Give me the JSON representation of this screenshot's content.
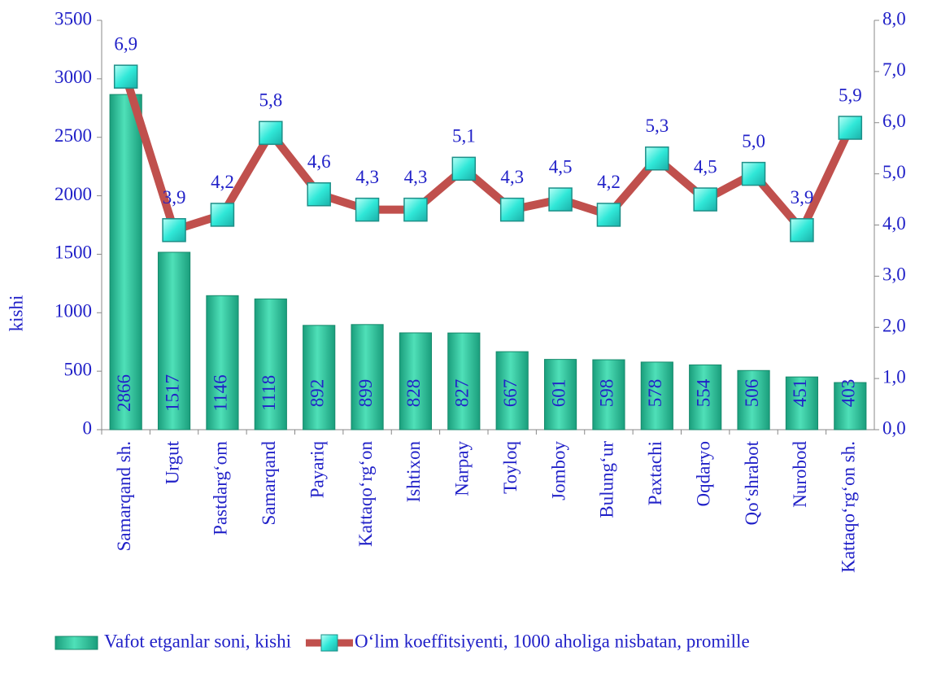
{
  "chart_data": {
    "type": "bar",
    "y_label": "kishi",
    "categories": [
      "Samarqand sh.",
      "Urgut",
      "Pastdarg‘om",
      "Samarqand",
      "Payariq",
      "Kattaqo‘rg‘on",
      "Ishtixon",
      "Narpay",
      "Toyloq",
      "Jomboy",
      "Bulung‘ur",
      "Paxtachi",
      "Oqdaryo",
      "Qo‘shrabot",
      "Nurobod",
      "Kattaqo‘rg‘on sh."
    ],
    "series": [
      {
        "name": "Vafot etganlar soni, kishi",
        "type": "bar",
        "color": "#2cc49c",
        "values": [
          2866,
          1517,
          1146,
          1118,
          892,
          899,
          828,
          827,
          667,
          601,
          598,
          578,
          554,
          506,
          451,
          403
        ]
      },
      {
        "name": "O‘lim koeffitsiyenti, 1000 aholiga nisbatan, promille",
        "type": "line",
        "axis": "y2",
        "color": "#c0504d",
        "marker_color": "#3ff0e0",
        "values": [
          6.9,
          3.9,
          4.2,
          5.8,
          4.6,
          4.3,
          4.3,
          5.1,
          4.3,
          4.5,
          4.2,
          5.3,
          4.5,
          5.0,
          3.9,
          5.9
        ],
        "value_labels": [
          "6,9",
          "3,9",
          "4,2",
          "5,8",
          "4,6",
          "4,3",
          "4,3",
          "5,1",
          "4,3",
          "4,5",
          "4,2",
          "5,3",
          "4,5",
          "5,0",
          "3,9",
          "5,9"
        ]
      }
    ],
    "ylim": [
      0,
      3500
    ],
    "yticks": [
      0,
      500,
      1000,
      1500,
      2000,
      2500,
      3000,
      3500
    ],
    "y2lim": [
      0,
      8
    ],
    "y2ticks": [
      {
        "value": 0,
        "label": "0,0"
      },
      {
        "value": 1,
        "label": "1,0"
      },
      {
        "value": 2,
        "label": "2,0"
      },
      {
        "value": 3,
        "label": "3,0"
      },
      {
        "value": 4,
        "label": "4,0"
      },
      {
        "value": 5,
        "label": "5,0"
      },
      {
        "value": 6,
        "label": "6,0"
      },
      {
        "value": 7,
        "label": "7,0"
      },
      {
        "value": 8,
        "label": "8,0"
      }
    ],
    "legend": "bottom"
  }
}
